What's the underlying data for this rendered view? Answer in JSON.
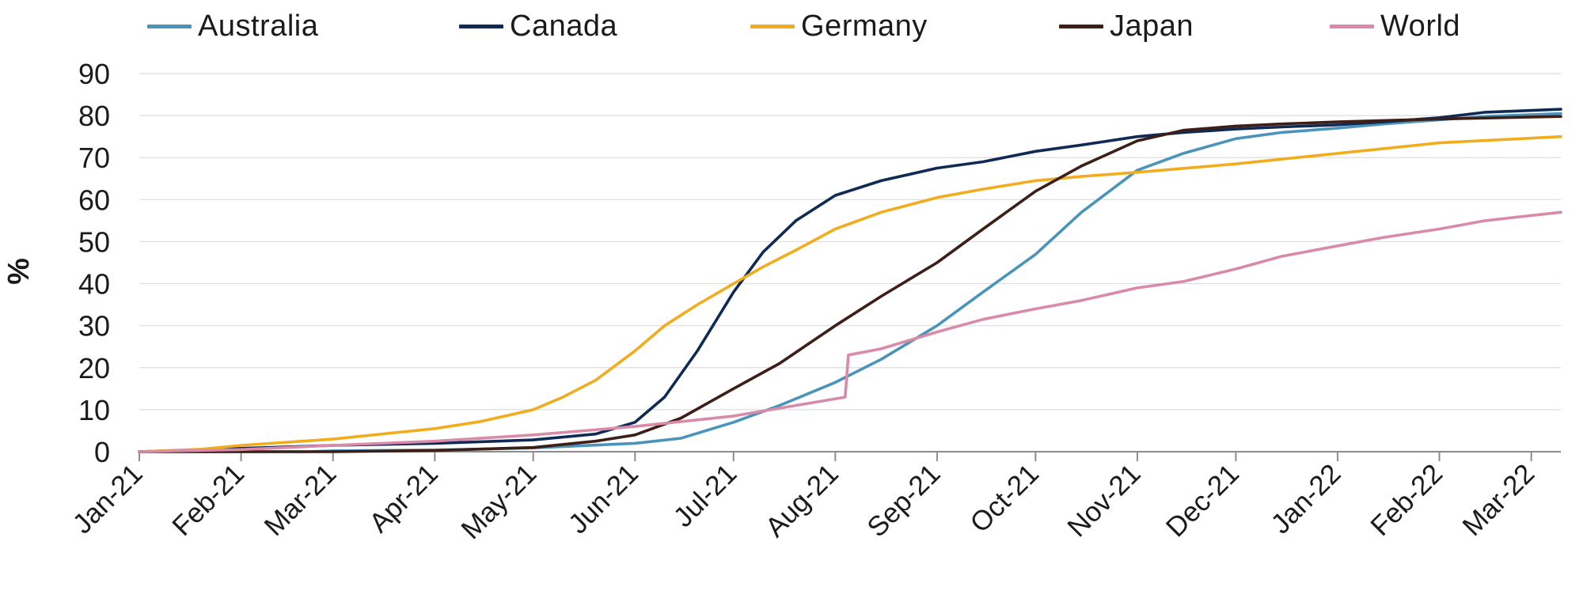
{
  "chart_data": {
    "type": "line",
    "title": "",
    "xlabel": "",
    "ylabel": "%",
    "ylim": [
      0,
      90
    ],
    "yticks": [
      0,
      10,
      20,
      30,
      40,
      50,
      60,
      70,
      80,
      90
    ],
    "xlim": [
      "2021-01-01",
      "2022-03-10"
    ],
    "xtick_labels": [
      "Jan-21",
      "Feb-21",
      "Mar-21",
      "Apr-21",
      "May-21",
      "Jun-21",
      "Jul-21",
      "Aug-21",
      "Sep-21",
      "Oct-21",
      "Nov-21",
      "Dec-21",
      "Jan-22",
      "Feb-22",
      "Mar-22"
    ],
    "xtick_dates": [
      "2021-01-01",
      "2021-02-01",
      "2021-03-01",
      "2021-04-01",
      "2021-05-01",
      "2021-06-01",
      "2021-07-01",
      "2021-08-01",
      "2021-09-01",
      "2021-10-01",
      "2021-11-01",
      "2021-12-01",
      "2022-01-01",
      "2022-02-01",
      "2022-03-01"
    ],
    "grid": true,
    "legend_position": "top",
    "series": [
      {
        "name": "Australia",
        "color": "#4a93bb",
        "points": [
          [
            "2021-01-01",
            0
          ],
          [
            "2021-02-21",
            0
          ],
          [
            "2021-03-01",
            0.2
          ],
          [
            "2021-04-01",
            0.4
          ],
          [
            "2021-05-01",
            0.9
          ],
          [
            "2021-06-01",
            2.0
          ],
          [
            "2021-06-15",
            3.2
          ],
          [
            "2021-07-01",
            7.0
          ],
          [
            "2021-07-15",
            11.0
          ],
          [
            "2021-08-01",
            16.5
          ],
          [
            "2021-08-15",
            22.0
          ],
          [
            "2021-09-01",
            30.0
          ],
          [
            "2021-09-15",
            38.0
          ],
          [
            "2021-10-01",
            47.0
          ],
          [
            "2021-10-15",
            57.0
          ],
          [
            "2021-11-01",
            67.0
          ],
          [
            "2021-11-15",
            71.0
          ],
          [
            "2021-12-01",
            74.5
          ],
          [
            "2021-12-15",
            76.0
          ],
          [
            "2022-01-01",
            77.0
          ],
          [
            "2022-01-15",
            78.0
          ],
          [
            "2022-02-01",
            79.0
          ],
          [
            "2022-02-15",
            79.8
          ],
          [
            "2022-03-10",
            80.5
          ]
        ]
      },
      {
        "name": "Canada",
        "color": "#0e2a55",
        "points": [
          [
            "2021-01-01",
            0
          ],
          [
            "2021-02-01",
            0.8
          ],
          [
            "2021-03-01",
            1.5
          ],
          [
            "2021-04-01",
            2.0
          ],
          [
            "2021-05-01",
            2.8
          ],
          [
            "2021-05-20",
            4.2
          ],
          [
            "2021-06-01",
            7.0
          ],
          [
            "2021-06-10",
            13.0
          ],
          [
            "2021-06-20",
            24.0
          ],
          [
            "2021-07-01",
            38.0
          ],
          [
            "2021-07-10",
            47.5
          ],
          [
            "2021-07-20",
            55.0
          ],
          [
            "2021-08-01",
            61.0
          ],
          [
            "2021-08-15",
            64.5
          ],
          [
            "2021-09-01",
            67.5
          ],
          [
            "2021-09-15",
            69.0
          ],
          [
            "2021-10-01",
            71.5
          ],
          [
            "2021-10-15",
            73.0
          ],
          [
            "2021-11-01",
            75.0
          ],
          [
            "2021-11-15",
            76.0
          ],
          [
            "2021-12-01",
            76.8
          ],
          [
            "2021-12-15",
            77.3
          ],
          [
            "2022-01-01",
            77.8
          ],
          [
            "2022-01-15",
            78.5
          ],
          [
            "2022-02-01",
            79.5
          ],
          [
            "2022-02-15",
            80.8
          ],
          [
            "2022-03-10",
            81.5
          ]
        ]
      },
      {
        "name": "Germany",
        "color": "#f2ad1f",
        "points": [
          [
            "2021-01-01",
            0
          ],
          [
            "2021-01-20",
            0.6
          ],
          [
            "2021-02-01",
            1.5
          ],
          [
            "2021-03-01",
            3.0
          ],
          [
            "2021-04-01",
            5.5
          ],
          [
            "2021-04-15",
            7.2
          ],
          [
            "2021-05-01",
            10.0
          ],
          [
            "2021-05-10",
            13.0
          ],
          [
            "2021-05-20",
            17.0
          ],
          [
            "2021-06-01",
            24.0
          ],
          [
            "2021-06-10",
            30.0
          ],
          [
            "2021-06-20",
            35.0
          ],
          [
            "2021-07-01",
            40.0
          ],
          [
            "2021-07-10",
            44.0
          ],
          [
            "2021-07-20",
            48.0
          ],
          [
            "2021-08-01",
            53.0
          ],
          [
            "2021-08-15",
            57.0
          ],
          [
            "2021-09-01",
            60.5
          ],
          [
            "2021-09-15",
            62.5
          ],
          [
            "2021-10-01",
            64.5
          ],
          [
            "2021-10-15",
            65.5
          ],
          [
            "2021-11-01",
            66.5
          ],
          [
            "2021-12-01",
            68.5
          ],
          [
            "2022-01-01",
            71.0
          ],
          [
            "2022-02-01",
            73.5
          ],
          [
            "2022-03-10",
            75.0
          ]
        ]
      },
      {
        "name": "Japan",
        "color": "#3d1f17",
        "points": [
          [
            "2021-01-01",
            0
          ],
          [
            "2021-03-01",
            0
          ],
          [
            "2021-04-01",
            0.3
          ],
          [
            "2021-05-01",
            1.0
          ],
          [
            "2021-05-20",
            2.5
          ],
          [
            "2021-06-01",
            4.0
          ],
          [
            "2021-06-15",
            8.0
          ],
          [
            "2021-07-01",
            15.0
          ],
          [
            "2021-07-15",
            21.0
          ],
          [
            "2021-08-01",
            30.0
          ],
          [
            "2021-08-15",
            37.0
          ],
          [
            "2021-09-01",
            45.0
          ],
          [
            "2021-09-15",
            53.0
          ],
          [
            "2021-10-01",
            62.0
          ],
          [
            "2021-10-15",
            68.0
          ],
          [
            "2021-11-01",
            74.0
          ],
          [
            "2021-11-15",
            76.5
          ],
          [
            "2021-12-01",
            77.5
          ],
          [
            "2021-12-15",
            78.0
          ],
          [
            "2022-01-01",
            78.5
          ],
          [
            "2022-02-01",
            79.2
          ],
          [
            "2022-03-10",
            79.8
          ]
        ]
      },
      {
        "name": "World",
        "color": "#d98aa8",
        "points": [
          [
            "2021-01-01",
            0
          ],
          [
            "2021-02-01",
            0.5
          ],
          [
            "2021-03-01",
            1.5
          ],
          [
            "2021-04-01",
            2.5
          ],
          [
            "2021-05-01",
            4.0
          ],
          [
            "2021-06-01",
            6.0
          ],
          [
            "2021-07-01",
            8.5
          ],
          [
            "2021-08-04",
            13.0
          ],
          [
            "2021-08-05",
            23.0
          ],
          [
            "2021-08-15",
            24.5
          ],
          [
            "2021-09-01",
            28.5
          ],
          [
            "2021-09-15",
            31.5
          ],
          [
            "2021-10-01",
            34.0
          ],
          [
            "2021-10-15",
            36.0
          ],
          [
            "2021-11-01",
            39.0
          ],
          [
            "2021-11-15",
            40.5
          ],
          [
            "2021-12-01",
            43.5
          ],
          [
            "2021-12-15",
            46.5
          ],
          [
            "2022-01-01",
            49.0
          ],
          [
            "2022-01-15",
            51.0
          ],
          [
            "2022-02-01",
            53.0
          ],
          [
            "2022-02-15",
            55.0
          ],
          [
            "2022-03-10",
            57.0
          ]
        ]
      }
    ]
  }
}
